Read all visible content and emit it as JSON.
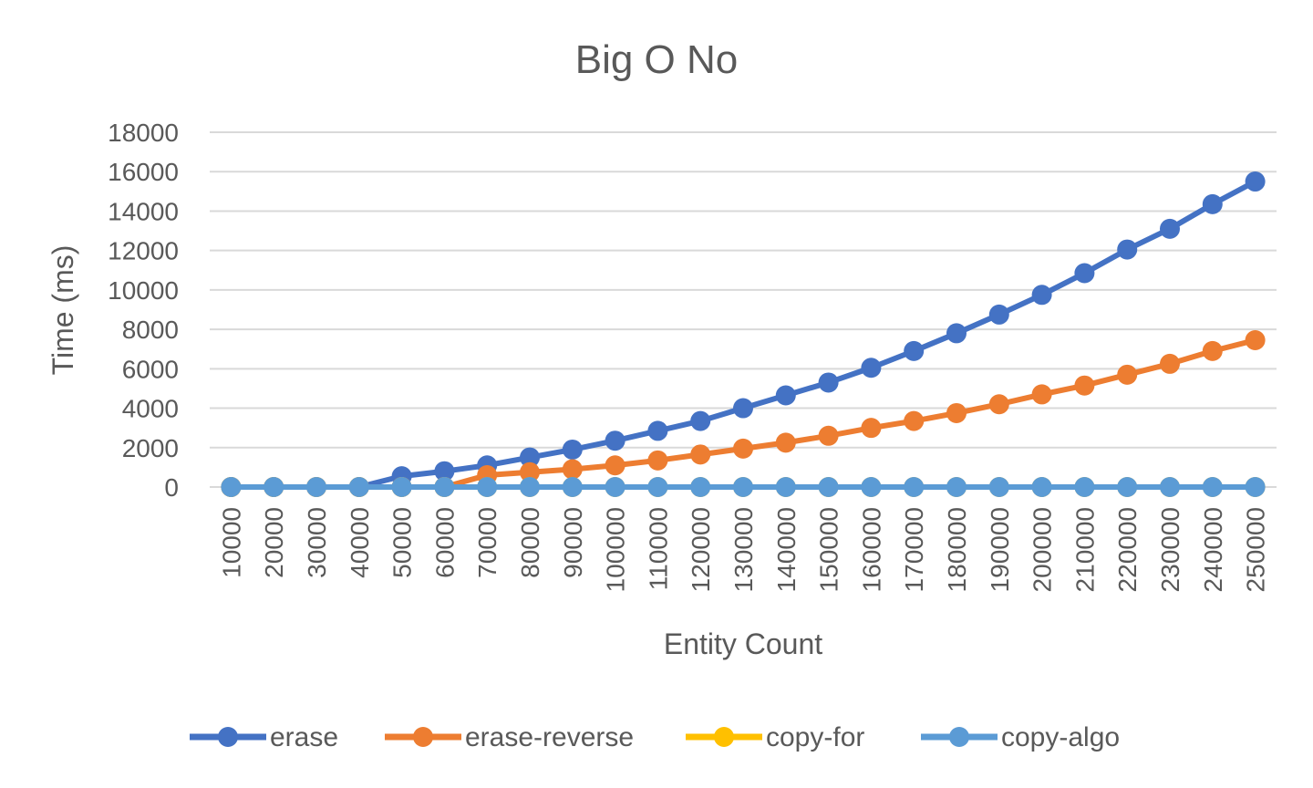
{
  "chart_data": {
    "type": "line",
    "title": "Big O No",
    "xlabel": "Entity Count",
    "ylabel": "Time (ms)",
    "ylim": [
      0,
      18000
    ],
    "yticks": [
      "0",
      "2000",
      "4000",
      "6000",
      "8000",
      "10000",
      "12000",
      "14000",
      "16000",
      "18000"
    ],
    "categories": [
      "10000",
      "20000",
      "30000",
      "40000",
      "50000",
      "60000",
      "70000",
      "80000",
      "90000",
      "100000",
      "110000",
      "120000",
      "130000",
      "140000",
      "150000",
      "160000",
      "170000",
      "180000",
      "190000",
      "200000",
      "210000",
      "220000",
      "230000",
      "240000",
      "250000"
    ],
    "grid": true,
    "legend_position": "bottom",
    "series": [
      {
        "name": "erase",
        "color": "#4472c4",
        "values": [
          0,
          0,
          0,
          0,
          550,
          800,
          1100,
          1500,
          1900,
          2350,
          2850,
          3350,
          4000,
          4650,
          5300,
          6050,
          6900,
          7800,
          8750,
          9750,
          10850,
          12050,
          13100,
          14350,
          15500
        ]
      },
      {
        "name": "erase-reverse",
        "color": "#ed7d31",
        "values": [
          0,
          0,
          0,
          0,
          0,
          0,
          600,
          750,
          900,
          1100,
          1350,
          1650,
          1950,
          2250,
          2600,
          3000,
          3350,
          3750,
          4200,
          4700,
          5150,
          5700,
          6250,
          6900,
          7450
        ]
      },
      {
        "name": "copy-for",
        "color": "#ffc000",
        "values": [
          0,
          0,
          0,
          0,
          0,
          0,
          0,
          0,
          0,
          0,
          0,
          0,
          0,
          0,
          0,
          0,
          0,
          0,
          0,
          0,
          0,
          0,
          0,
          0,
          0
        ]
      },
      {
        "name": "copy-algo",
        "color": "#5b9bd5",
        "values": [
          0,
          0,
          0,
          0,
          0,
          0,
          0,
          0,
          0,
          0,
          0,
          0,
          0,
          0,
          0,
          0,
          0,
          0,
          0,
          0,
          0,
          0,
          0,
          0,
          0
        ]
      }
    ]
  }
}
